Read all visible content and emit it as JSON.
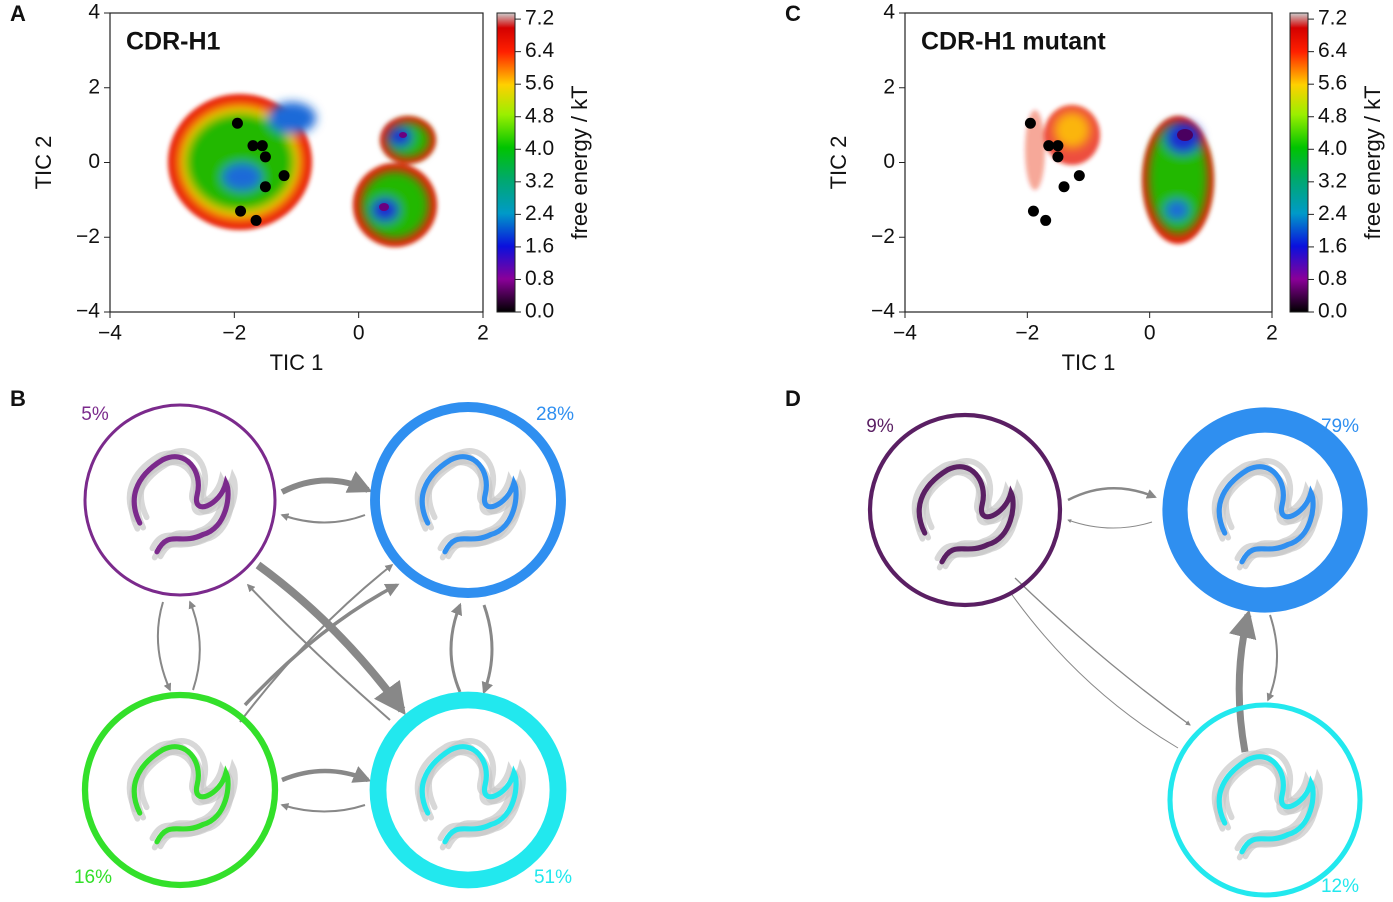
{
  "panels": [
    {
      "label": "A",
      "title": "CDR-H1",
      "xlabel": "TIC 1",
      "ylabel": "TIC 2",
      "xlim": [
        -4,
        2
      ],
      "ylim": [
        -4,
        4
      ],
      "xticks": [
        {
          "value": -4,
          "label": "−4"
        },
        {
          "value": -2,
          "label": "−2"
        },
        0,
        2
      ],
      "yticks": [
        {
          "value": -4,
          "label": "−4"
        },
        {
          "value": -2,
          "label": "−2"
        },
        0,
        2,
        4
      ],
      "points": {
        "x": [
          -1.95,
          -1.7,
          -1.55,
          -1.5,
          -1.2,
          -1.5,
          -1.9,
          -1.65
        ],
        "y": [
          1.05,
          0.45,
          0.45,
          0.15,
          -0.35,
          -0.65,
          -1.3,
          -1.55
        ]
      },
      "colorbar": {
        "label": "free energy / kT",
        "clim": [
          0,
          7.35
        ],
        "ticks": [
          {
            "value": 0,
            "label": "0.0"
          },
          0.8,
          1.6,
          2.4,
          3.2,
          {
            "value": 4,
            "label": "4.0"
          },
          4.8,
          5.6,
          6.4,
          7.2
        ]
      }
    },
    {
      "label": "C",
      "title": "CDR-H1 mutant",
      "xlabel": "TIC 1",
      "ylabel": "TIC 2",
      "xlim": [
        -4,
        2
      ],
      "ylim": [
        -4,
        4
      ],
      "xticks": [
        {
          "value": -4,
          "label": "−4"
        },
        {
          "value": -2,
          "label": "−2"
        },
        0,
        2
      ],
      "yticks": [
        {
          "value": -4,
          "label": "−4"
        },
        {
          "value": -2,
          "label": "−2"
        },
        0,
        2,
        4
      ],
      "points": {
        "x": [
          -1.95,
          -1.65,
          -1.5,
          -1.5,
          -1.15,
          -1.4,
          -1.9,
          -1.7
        ],
        "y": [
          1.05,
          0.45,
          0.45,
          0.15,
          -0.35,
          -0.65,
          -1.3,
          -1.55
        ]
      },
      "colorbar": {
        "label": "free energy / kT",
        "clim": [
          0,
          7.35
        ],
        "ticks": [
          {
            "value": 0,
            "label": "0.0"
          },
          0.8,
          1.6,
          2.4,
          3.2,
          {
            "value": 4,
            "label": "4.0"
          },
          4.8,
          5.6,
          6.4,
          7.2
        ]
      }
    }
  ],
  "networks": [
    {
      "label": "B",
      "states": [
        {
          "value": 5,
          "label": "5%",
          "color": "#7b2a8c"
        },
        {
          "value": 28,
          "label": "28%",
          "color": "#2f8ff0"
        },
        {
          "value": 16,
          "label": "16%",
          "color": "#33e02a"
        },
        {
          "value": 51,
          "label": "51%",
          "color": "#22e8ee"
        }
      ]
    },
    {
      "label": "D",
      "states": [
        {
          "value": 9,
          "label": "9%",
          "color": "#5a1f63"
        },
        {
          "value": 79,
          "label": "79%",
          "color": "#2f8ff0"
        },
        {
          "value": 12,
          "label": "12%",
          "color": "#22e8ee"
        }
      ]
    }
  ]
}
